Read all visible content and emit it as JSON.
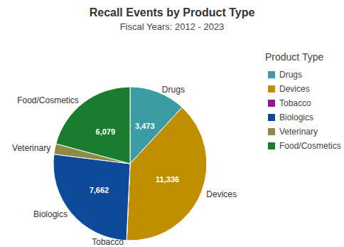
{
  "chart_data": {
    "type": "pie",
    "title": "Recall Events by Product Type",
    "subtitle": "Fiscal Years: 2012 - 2023",
    "legend_title": "Product Type",
    "categories": [
      "Drugs",
      "Devices",
      "Tobacco",
      "Biologics",
      "Veterinary",
      "Food/Cosmetics"
    ],
    "values": [
      3473,
      11336,
      10,
      7662,
      650,
      6079
    ],
    "value_labels": [
      "3,473",
      "11,336",
      null,
      "7,662",
      null,
      "6,079"
    ],
    "colors": [
      "#3a9da3",
      "#c08f00",
      "#8b1a8a",
      "#0d4a9a",
      "#8c8c44",
      "#1a7d2e"
    ],
    "data_labels": true,
    "legend": "right"
  }
}
